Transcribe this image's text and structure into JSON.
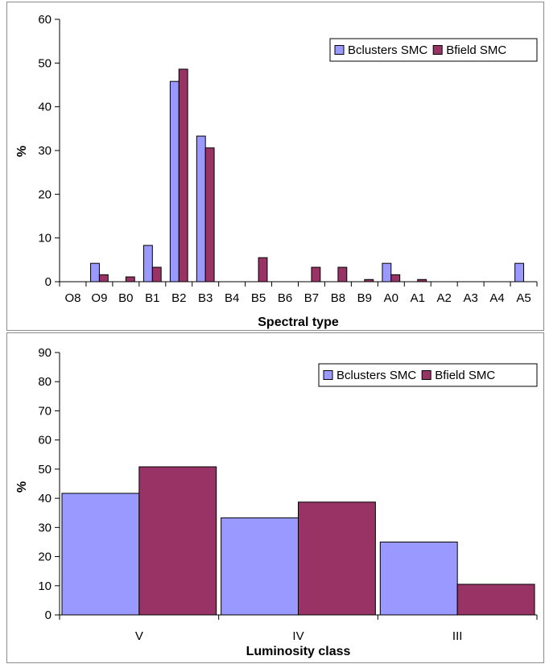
{
  "colors": {
    "clusters": "#9999ff",
    "field": "#993366",
    "axis": "#000000",
    "frame": "#8c8c8c"
  },
  "chart_data": [
    {
      "type": "bar",
      "xlabel": "Spectral type",
      "ylabel": "%",
      "ylim": [
        0,
        60
      ],
      "yticks": [
        0,
        10,
        20,
        30,
        40,
        50,
        60
      ],
      "grid": false,
      "legend_position": "top-right",
      "categories": [
        "O8",
        "O9",
        "B0",
        "B1",
        "B2",
        "B3",
        "B4",
        "B5",
        "B6",
        "B7",
        "B8",
        "B9",
        "A0",
        "A1",
        "A2",
        "A3",
        "A4",
        "A5"
      ],
      "series": [
        {
          "name": "Bclusters SMC",
          "color": "#9999ff",
          "values": [
            0,
            4.2,
            0,
            8.3,
            45.8,
            33.3,
            0,
            0,
            0,
            0,
            0,
            0,
            4.2,
            0,
            0,
            0,
            0,
            4.2
          ]
        },
        {
          "name": "Bfield SMC",
          "color": "#993366",
          "values": [
            0,
            1.6,
            1.1,
            3.3,
            48.6,
            30.6,
            0,
            5.5,
            0,
            3.3,
            3.3,
            0.5,
            1.6,
            0.5,
            0,
            0,
            0,
            0
          ]
        }
      ]
    },
    {
      "type": "bar",
      "xlabel": "Luminosity class",
      "ylabel": "%",
      "ylim": [
        0,
        90
      ],
      "yticks": [
        0,
        10,
        20,
        30,
        40,
        50,
        60,
        70,
        80,
        90
      ],
      "grid": false,
      "legend_position": "top-right",
      "categories": [
        "V",
        "IV",
        "III"
      ],
      "series": [
        {
          "name": "Bclusters SMC",
          "color": "#9999ff",
          "values": [
            41.7,
            33.3,
            25.0
          ]
        },
        {
          "name": "Bfield SMC",
          "color": "#993366",
          "values": [
            50.8,
            38.7,
            10.5
          ]
        }
      ]
    }
  ]
}
